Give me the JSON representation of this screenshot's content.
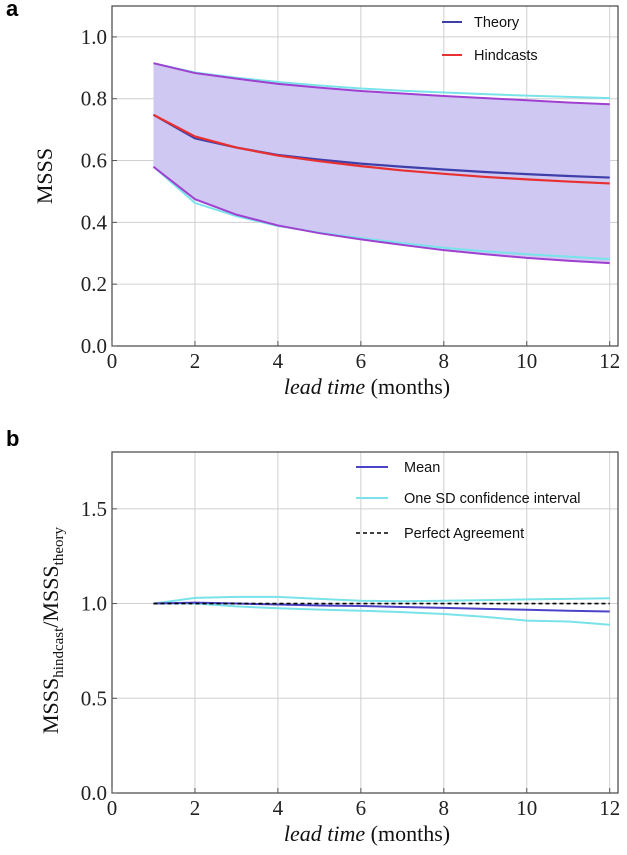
{
  "chart_data": [
    {
      "panel": "a",
      "type": "line",
      "xlabel_italic": "lead time",
      "xlabel_unit": " (months)",
      "ylabel": "MSSS",
      "xlim": [
        0,
        12.2
      ],
      "ylim": [
        0,
        1.1
      ],
      "xticks": [
        0,
        2,
        4,
        6,
        8,
        10,
        12
      ],
      "yticks": [
        0.0,
        0.2,
        0.4,
        0.6,
        0.8,
        1.0
      ],
      "ytick_labels": [
        "0.0",
        "0.2",
        "0.4",
        "0.6",
        "0.8",
        "1.0"
      ],
      "grid": true,
      "legend_position": "top-right",
      "x": [
        1,
        2,
        3,
        4,
        5,
        6,
        7,
        8,
        9,
        10,
        11,
        12
      ],
      "band": {
        "color": "#cfc8f2",
        "lower": [
          0.58,
          0.475,
          0.425,
          0.39,
          0.365,
          0.345,
          0.327,
          0.31,
          0.297,
          0.285,
          0.276,
          0.268
        ],
        "upper": [
          0.915,
          0.883,
          0.865,
          0.848,
          0.836,
          0.825,
          0.817,
          0.809,
          0.802,
          0.795,
          0.788,
          0.782
        ]
      },
      "series": [
        {
          "name": "Theory",
          "color": "#3f3faa",
          "values": [
            0.748,
            0.672,
            0.642,
            0.618,
            0.603,
            0.59,
            0.58,
            0.571,
            0.563,
            0.556,
            0.55,
            0.545
          ]
        },
        {
          "name": "Hindcasts",
          "color": "#e83030",
          "values": [
            0.748,
            0.678,
            0.642,
            0.616,
            0.598,
            0.582,
            0.568,
            0.557,
            0.547,
            0.539,
            0.532,
            0.526
          ]
        }
      ],
      "ci_lines": {
        "color": "#79e3ea",
        "lower": [
          0.58,
          0.463,
          0.42,
          0.388,
          0.367,
          0.349,
          0.333,
          0.318,
          0.306,
          0.297,
          0.289,
          0.281
        ],
        "upper": [
          0.915,
          0.885,
          0.868,
          0.854,
          0.843,
          0.833,
          0.826,
          0.82,
          0.815,
          0.81,
          0.806,
          0.802
        ]
      },
      "bound_lines": {
        "color": "#a040d0"
      }
    },
    {
      "panel": "b",
      "type": "line",
      "xlabel_italic": "lead time",
      "xlabel_unit": " (months)",
      "ylabel_main1": "MSSS",
      "ylabel_sub1": "hindcast",
      "ylabel_main2": "/MSSS",
      "ylabel_sub2": "theory",
      "xlim": [
        0,
        12.2
      ],
      "ylim": [
        0,
        1.8
      ],
      "xticks": [
        0,
        2,
        4,
        6,
        8,
        10,
        12
      ],
      "yticks": [
        0.0,
        0.5,
        1.0,
        1.5
      ],
      "ytick_labels": [
        "0.0",
        "0.5",
        "1.0",
        "1.5"
      ],
      "grid": true,
      "legend_position": "top-right",
      "x": [
        1,
        2,
        3,
        4,
        5,
        6,
        7,
        8,
        9,
        10,
        11,
        12
      ],
      "series": [
        {
          "name": "Mean",
          "color": "#4d43c8",
          "values": [
            1.0,
            1.005,
            1.0,
            0.995,
            0.99,
            0.987,
            0.982,
            0.977,
            0.972,
            0.967,
            0.962,
            0.958
          ]
        },
        {
          "name": "One SD confidence interval",
          "color": "#79e3ea",
          "lower": [
            1.0,
            1.0,
            0.985,
            0.975,
            0.968,
            0.962,
            0.955,
            0.945,
            0.93,
            0.91,
            0.905,
            0.888
          ],
          "upper": [
            1.0,
            1.03,
            1.035,
            1.035,
            1.025,
            1.015,
            1.012,
            1.015,
            1.018,
            1.022,
            1.025,
            1.028
          ]
        },
        {
          "name": "Perfect Agreement",
          "color": "#000000",
          "dashed": true,
          "values": [
            1.0,
            1.0,
            1.0,
            1.0,
            1.0,
            1.0,
            1.0,
            1.0,
            1.0,
            1.0,
            1.0,
            1.0
          ]
        }
      ]
    }
  ],
  "panel_labels": [
    "a",
    "b"
  ]
}
